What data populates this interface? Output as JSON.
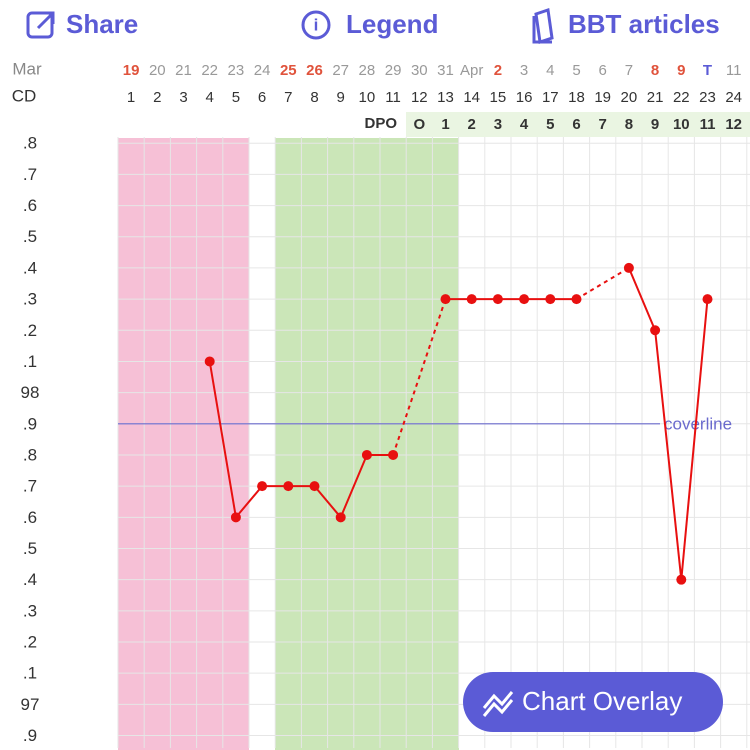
{
  "toolbar": {
    "share": "Share",
    "legend": "Legend",
    "articles": "BBT articles"
  },
  "chart_data": {
    "type": "line",
    "month_label": "Mar",
    "cd_label": "CD",
    "dpo_label": "DPO",
    "dates": [
      "19",
      "20",
      "21",
      "22",
      "23",
      "24",
      "25",
      "26",
      "27",
      "28",
      "29",
      "30",
      "31",
      "Apr",
      "2",
      "3",
      "4",
      "5",
      "6",
      "7",
      "8",
      "9",
      "T",
      "11"
    ],
    "date_colors": [
      "#e0533c",
      "#999",
      "#999",
      "#999",
      "#999",
      "#999",
      "#e0533c",
      "#e0533c",
      "#999",
      "#999",
      "#999",
      "#999",
      "#999",
      "#999",
      "#e0533c",
      "#999",
      "#999",
      "#999",
      "#999",
      "#999",
      "#e0533c",
      "#e0533c",
      "#5b5bd6",
      "#999"
    ],
    "categories": [
      1,
      2,
      3,
      4,
      5,
      6,
      7,
      8,
      9,
      10,
      11,
      12,
      13,
      14,
      15,
      16,
      17,
      18,
      19,
      20,
      21,
      22,
      23,
      24
    ],
    "dpo": [
      null,
      null,
      null,
      null,
      null,
      null,
      null,
      null,
      null,
      null,
      null,
      "O",
      "1",
      "2",
      "3",
      "4",
      "5",
      "6",
      "7",
      "8",
      "9",
      "10",
      "11",
      "12"
    ],
    "values": [
      null,
      null,
      null,
      98.1,
      97.6,
      97.7,
      97.7,
      97.7,
      97.6,
      97.8,
      97.8,
      null,
      98.3,
      98.3,
      98.3,
      98.3,
      98.3,
      98.3,
      null,
      98.4,
      98.2,
      97.4,
      98.3,
      null
    ],
    "color": "#e81010",
    "ylim": [
      96.86,
      98.82
    ],
    "yticks": [
      {
        "value": 98.8,
        "label": ".8"
      },
      {
        "value": 98.7,
        "label": ".7"
      },
      {
        "value": 98.6,
        "label": ".6"
      },
      {
        "value": 98.5,
        "label": ".5"
      },
      {
        "value": 98.4,
        "label": ".4"
      },
      {
        "value": 98.3,
        "label": ".3"
      },
      {
        "value": 98.2,
        "label": ".2"
      },
      {
        "value": 98.1,
        "label": ".1"
      },
      98,
      {
        "value": 97.9,
        "label": ".9"
      },
      {
        "value": 97.8,
        "label": ".8"
      },
      {
        "value": 97.7,
        "label": ".7"
      },
      {
        "value": 97.6,
        "label": ".6"
      },
      {
        "value": 97.5,
        "label": ".5"
      },
      {
        "value": 97.4,
        "label": ".4"
      },
      {
        "value": 97.3,
        "label": ".3"
      },
      {
        "value": 97.2,
        "label": ".2"
      },
      {
        "value": 97.1,
        "label": ".1"
      },
      97,
      {
        "value": 96.9,
        "label": ".9"
      }
    ],
    "grid": true,
    "coverline": {
      "value": 97.9,
      "label": "coverline"
    }
  },
  "overlay_button": "Chart Overlay"
}
